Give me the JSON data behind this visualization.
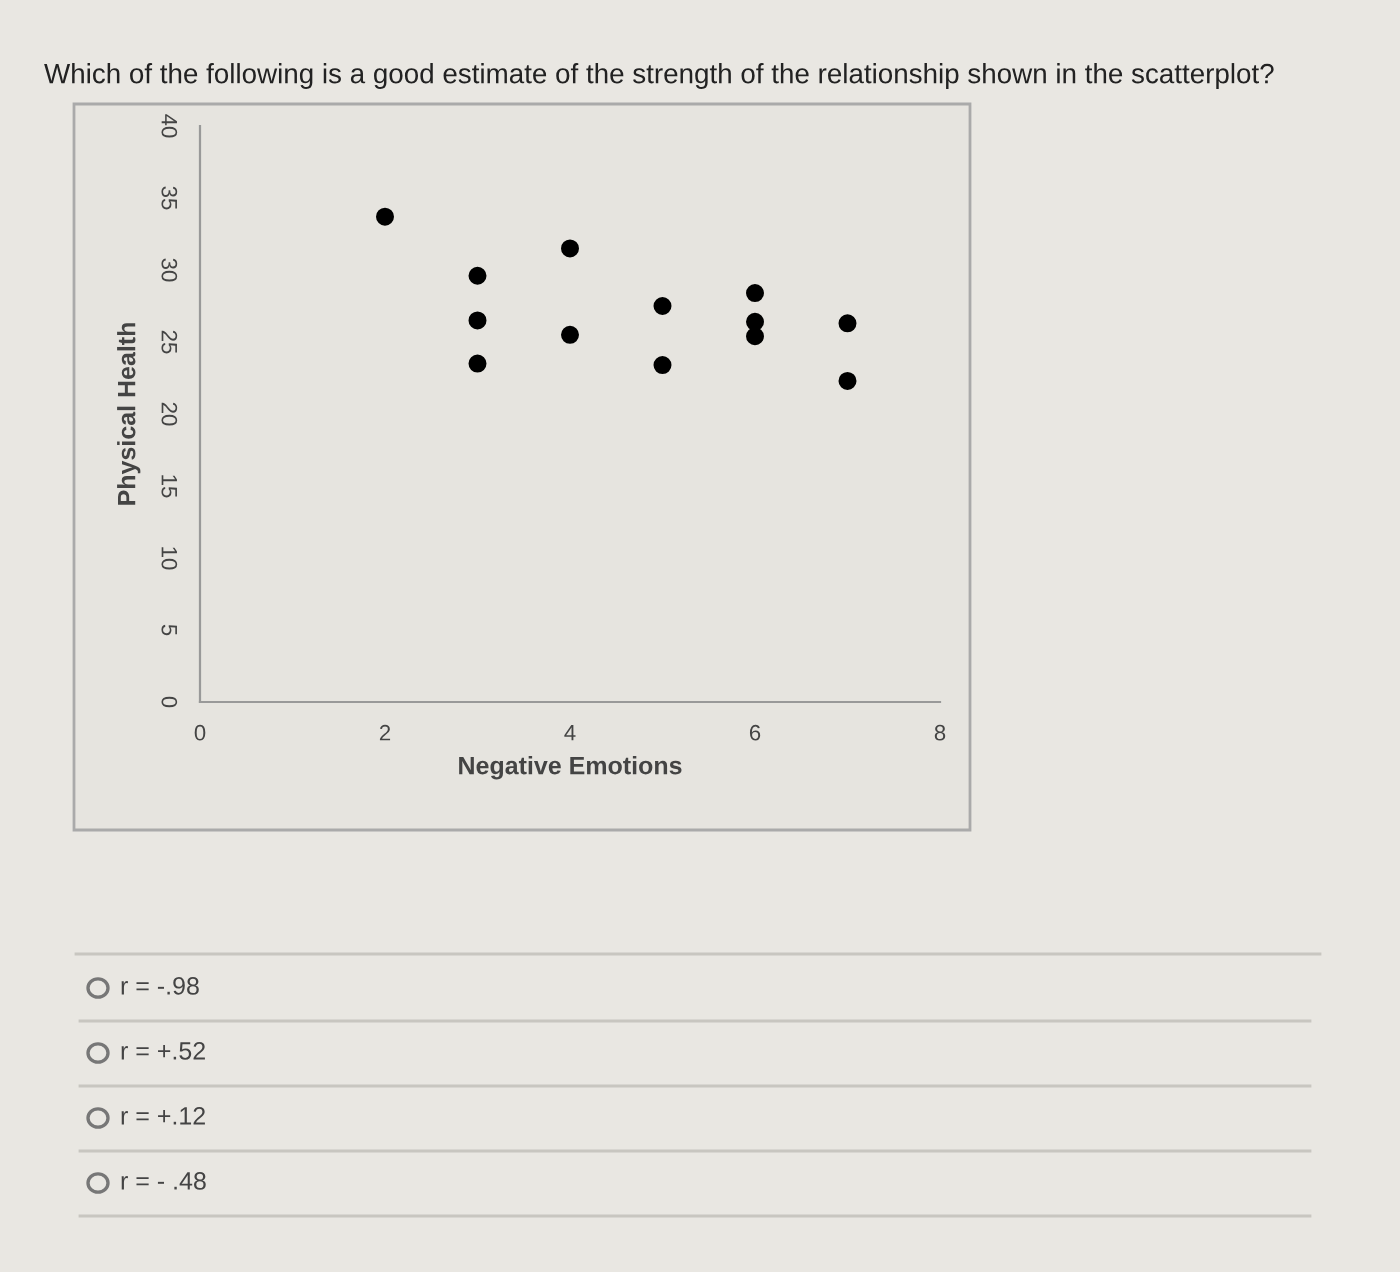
{
  "chart_data": {
    "type": "scatter",
    "title": "Which of the following is a good estimate of the strength of the relationship shown in the scatterplot?",
    "xlabel": "Negative Emotions",
    "ylabel": "Physical Health",
    "series": [
      {
        "color": "#000000",
        "x": [
          2,
          3,
          3,
          3,
          4,
          4,
          5,
          5,
          6,
          6,
          6,
          7,
          7
        ],
        "values": [
          33.7,
          29.6,
          26.5,
          23.5,
          31.5,
          25.5,
          27.5,
          23.4,
          28.4,
          26.4,
          25.4,
          26.3,
          22.3
        ]
      }
    ],
    "xlim": [
      0,
      8
    ],
    "xticks": [
      0,
      2,
      4,
      6,
      8
    ],
    "ylim": [
      0,
      40
    ],
    "yticks": [
      0,
      5,
      10,
      15,
      20,
      25,
      30,
      35,
      40
    ],
    "marker": "circle",
    "grid": false,
    "annotations": [
      "r = -.98",
      "r = +.52",
      "r = +.12",
      "r = - .48"
    ]
  }
}
